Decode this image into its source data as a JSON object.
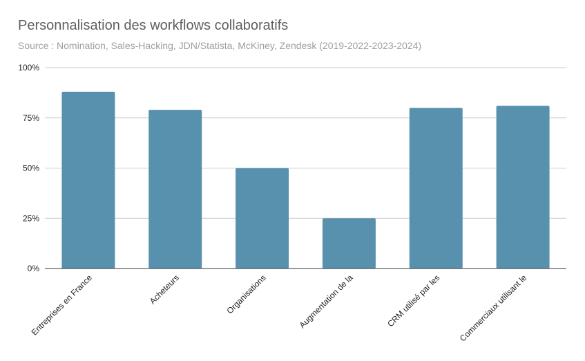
{
  "chart_data": {
    "type": "bar",
    "title": "Personnalisation des workflows collaboratifs",
    "subtitle": "Source : Nomination, Sales-Hacking, JDN/Statista, McKiney, Zendesk (2019-2022-2023-2024)",
    "xlabel": "",
    "ylabel": "",
    "categories": [
      "Entreprises en France",
      "Acheteurs",
      "Organisations",
      "Augmentation de la",
      "CRM utilisé par les",
      "Commerciaux utilisant le"
    ],
    "values": [
      88,
      79,
      50,
      25,
      80,
      81
    ],
    "ylim": [
      0,
      100
    ],
    "yticks": [
      0,
      25,
      50,
      75,
      100
    ],
    "ytick_labels": [
      "0%",
      "25%",
      "50%",
      "75%",
      "100%"
    ],
    "grid": true,
    "legend": "none",
    "bar_color": "#5891ad",
    "grid_color": "#cccccc",
    "axis_color": "#333333"
  }
}
